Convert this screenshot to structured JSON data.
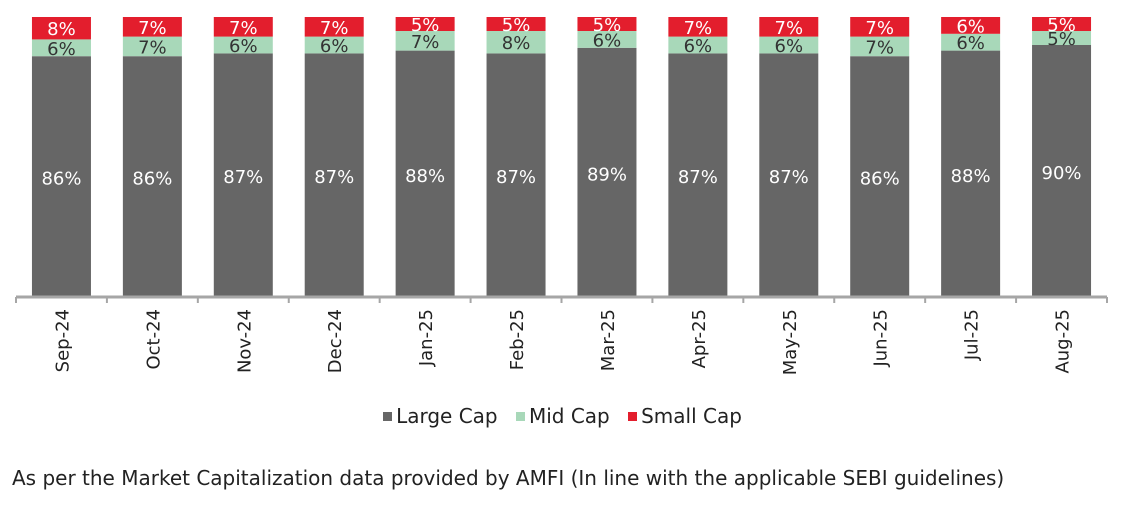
{
  "colors": {
    "large_cap": "#666666",
    "mid_cap": "#a8d8b9",
    "small_cap": "#e31e2d",
    "axis": "#a6a6a6"
  },
  "chart_data": {
    "type": "bar",
    "stacked": true,
    "percent": true,
    "categories": [
      "Sep-24",
      "Oct-24",
      "Nov-24",
      "Dec-24",
      "Jan-25",
      "Feb-25",
      "Mar-25",
      "Apr-25",
      "May-25",
      "Jun-25",
      "Jul-25",
      "Aug-25"
    ],
    "series": [
      {
        "name": "Large Cap",
        "values": [
          86,
          86,
          87,
          87,
          88,
          87,
          89,
          87,
          87,
          86,
          88,
          90
        ]
      },
      {
        "name": "Mid Cap",
        "values": [
          6,
          7,
          6,
          6,
          7,
          8,
          6,
          6,
          6,
          7,
          6,
          5
        ]
      },
      {
        "name": "Small Cap",
        "values": [
          8,
          7,
          7,
          7,
          5,
          5,
          5,
          7,
          7,
          7,
          6,
          5
        ]
      }
    ],
    "value_labels": [
      [
        "86%",
        "86%",
        "87%",
        "87%",
        "88%",
        "87%",
        "89%",
        "87%",
        "87%",
        "86%",
        "88%",
        "90%"
      ],
      [
        "6%",
        "7%",
        "6%",
        "6%",
        "7%",
        "8%",
        "6%",
        "6%",
        "6%",
        "7%",
        "6%",
        "5%"
      ],
      [
        "8%",
        "7%",
        "7%",
        "7%",
        "5%",
        "5%",
        "5%",
        "7%",
        "7%",
        "7%",
        "6%",
        "5%"
      ]
    ],
    "legend_position": "bottom",
    "grid": false
  },
  "legend": {
    "large": "Large Cap",
    "mid": "Mid Cap",
    "small": "Small Cap"
  },
  "footnote": "As per the Market Capitalization data provided by AMFI (In line with the applicable SEBI guidelines)"
}
